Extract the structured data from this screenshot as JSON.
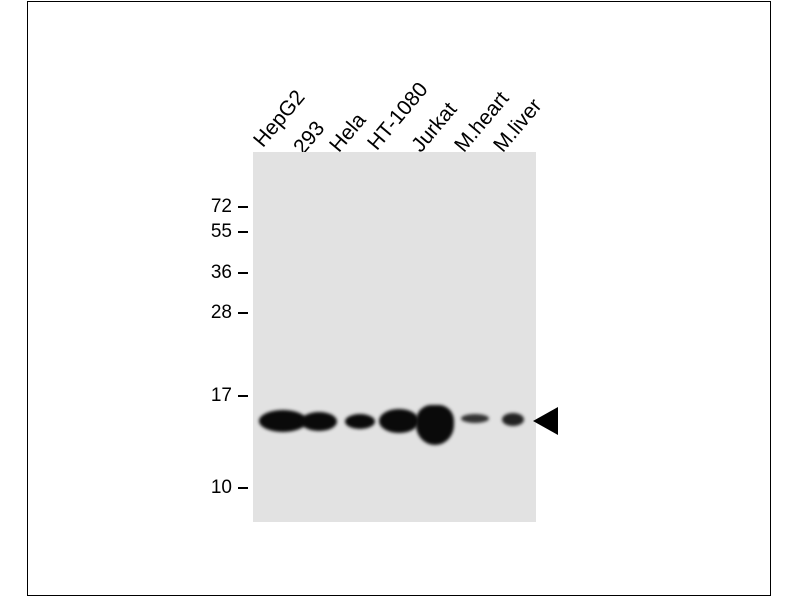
{
  "lanes": [
    "HepG2",
    "293",
    "Hela",
    "HT-1080",
    "Jurkat",
    "M.heart",
    "M.liver"
  ],
  "markers": [
    "72",
    "55",
    "36",
    "28",
    "17",
    "10"
  ],
  "band_intensity": [
    1.0,
    0.9,
    0.75,
    1.0,
    1.0,
    0.45,
    0.6
  ],
  "colors": {
    "membrane": "#e2e2e2",
    "band": "#0a0a0a"
  },
  "arrow_icon": "left-pointing-triangle"
}
